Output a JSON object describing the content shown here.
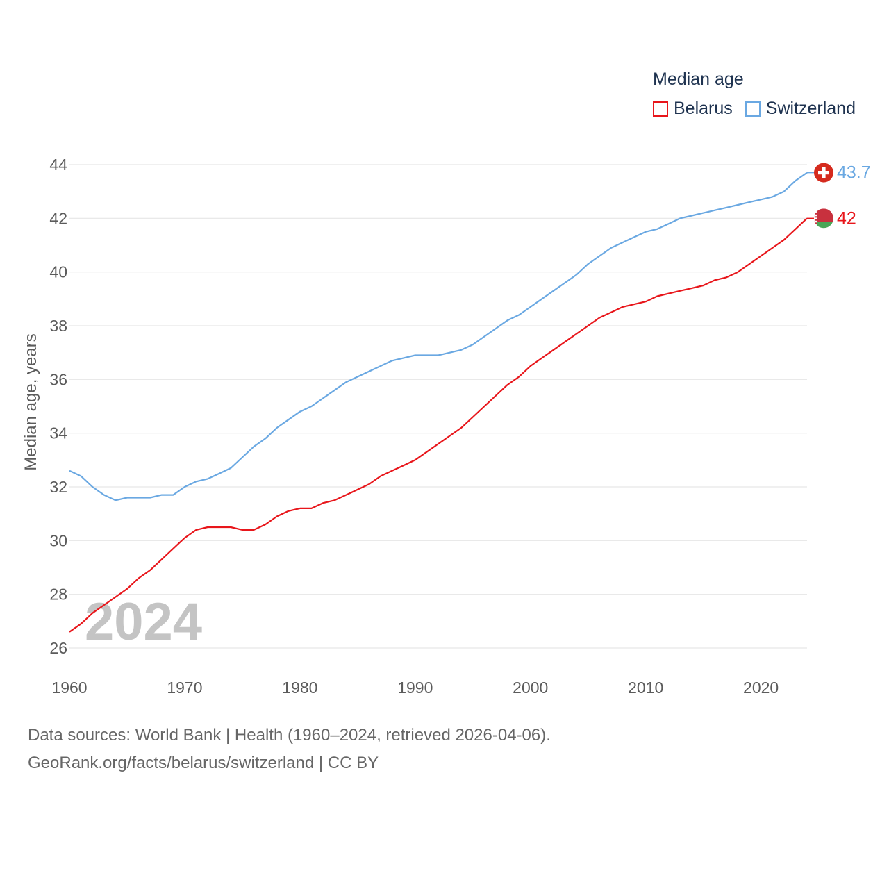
{
  "legend": {
    "title": "Median age",
    "items": [
      {
        "label": "Belarus",
        "color": "#e8161b"
      },
      {
        "label": "Switzerland",
        "color": "#6aa8e2"
      }
    ]
  },
  "footer": {
    "line1": "Data sources: World Bank | Health (1960–2024, retrieved 2026-04-06).",
    "line2": "GeoRank.org/facts/belarus/switzerland | CC BY"
  },
  "chart_data": {
    "type": "line",
    "title": "Median age",
    "xlabel": "",
    "ylabel": "Median age, years",
    "watermark_year": "2024",
    "xlim": [
      1960,
      2024
    ],
    "ylim": [
      26,
      44
    ],
    "x_ticks": [
      "1960",
      "1970",
      "1980",
      "1990",
      "2000",
      "2010",
      "2020"
    ],
    "y_ticks": [
      "26",
      "28",
      "30",
      "32",
      "34",
      "36",
      "38",
      "40",
      "42",
      "44"
    ],
    "grid": true,
    "legend_position": "top-right",
    "x": [
      1960,
      1961,
      1962,
      1963,
      1964,
      1965,
      1966,
      1967,
      1968,
      1969,
      1970,
      1971,
      1972,
      1973,
      1974,
      1975,
      1976,
      1977,
      1978,
      1979,
      1980,
      1981,
      1982,
      1983,
      1984,
      1985,
      1986,
      1987,
      1988,
      1989,
      1990,
      1991,
      1992,
      1993,
      1994,
      1995,
      1996,
      1997,
      1998,
      1999,
      2000,
      2001,
      2002,
      2003,
      2004,
      2005,
      2006,
      2007,
      2008,
      2009,
      2010,
      2011,
      2012,
      2013,
      2014,
      2015,
      2016,
      2017,
      2018,
      2019,
      2020,
      2021,
      2022,
      2023,
      2024
    ],
    "series": [
      {
        "name": "Belarus",
        "color": "#e8161b",
        "end_label": "42",
        "flag": "belarus",
        "values": [
          26.6,
          26.9,
          27.3,
          27.6,
          27.9,
          28.2,
          28.6,
          28.9,
          29.3,
          29.7,
          30.1,
          30.4,
          30.5,
          30.5,
          30.5,
          30.4,
          30.4,
          30.6,
          30.9,
          31.1,
          31.2,
          31.2,
          31.4,
          31.5,
          31.7,
          31.9,
          32.1,
          32.4,
          32.6,
          32.8,
          33.0,
          33.3,
          33.6,
          33.9,
          34.2,
          34.6,
          35.0,
          35.4,
          35.8,
          36.1,
          36.5,
          36.8,
          37.1,
          37.4,
          37.7,
          38.0,
          38.3,
          38.5,
          38.7,
          38.8,
          38.9,
          39.1,
          39.2,
          39.3,
          39.4,
          39.5,
          39.7,
          39.8,
          40.0,
          40.3,
          40.6,
          40.9,
          41.2,
          41.6,
          42.0
        ]
      },
      {
        "name": "Switzerland",
        "color": "#6aa8e2",
        "end_label": "43.7",
        "flag": "switzerland",
        "values": [
          32.6,
          32.4,
          32.0,
          31.7,
          31.5,
          31.6,
          31.6,
          31.6,
          31.7,
          31.7,
          32.0,
          32.2,
          32.3,
          32.5,
          32.7,
          33.1,
          33.5,
          33.8,
          34.2,
          34.5,
          34.8,
          35.0,
          35.3,
          35.6,
          35.9,
          36.1,
          36.3,
          36.5,
          36.7,
          36.8,
          36.9,
          36.9,
          36.9,
          37.0,
          37.1,
          37.3,
          37.6,
          37.9,
          38.2,
          38.4,
          38.7,
          39.0,
          39.3,
          39.6,
          39.9,
          40.3,
          40.6,
          40.9,
          41.1,
          41.3,
          41.5,
          41.6,
          41.8,
          42.0,
          42.1,
          42.2,
          42.3,
          42.4,
          42.5,
          42.6,
          42.7,
          42.8,
          43.0,
          43.4,
          43.7
        ]
      }
    ]
  }
}
